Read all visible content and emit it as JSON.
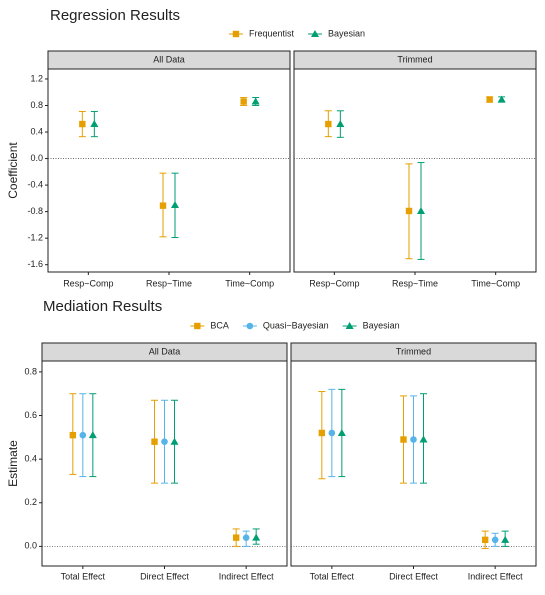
{
  "chart_data": [
    {
      "type": "errorbar",
      "title": "Regression Results",
      "ylabel": "Coefficient",
      "categories": [
        "Resp~Comp",
        "Resp~Time",
        "Time~Comp"
      ],
      "series": [
        {
          "name": "Frequentist",
          "color": "#E69F00",
          "marker": "square"
        },
        {
          "name": "Bayesian",
          "color": "#009E73",
          "marker": "triangle"
        }
      ],
      "facets": [
        {
          "title": "All Data",
          "series": [
            {
              "values": [
                0.52,
                -0.71,
                0.86
              ],
              "lower": [
                0.33,
                -1.18,
                0.8
              ],
              "upper": [
                0.71,
                -0.22,
                0.92
              ]
            },
            {
              "values": [
                0.52,
                -0.7,
                0.86
              ],
              "lower": [
                0.33,
                -1.19,
                0.8
              ],
              "upper": [
                0.71,
                -0.22,
                0.92
              ]
            }
          ]
        },
        {
          "title": "Trimmed",
          "series": [
            {
              "values": [
                0.52,
                -0.79,
                0.89
              ],
              "lower": [
                0.33,
                -1.51,
                0.85
              ],
              "upper": [
                0.72,
                -0.08,
                0.93
              ]
            },
            {
              "values": [
                0.52,
                -0.79,
                0.89
              ],
              "lower": [
                0.32,
                -1.52,
                0.85
              ],
              "upper": [
                0.72,
                -0.06,
                0.93
              ]
            }
          ]
        }
      ],
      "ylim": [
        -1.71,
        1.35
      ],
      "yticks": [
        1.2,
        0.8,
        0.4,
        {
          "value": 0,
          "label": "0.0"
        },
        -0.4,
        -0.8,
        -1.2,
        -1.6
      ],
      "hline": 0
    },
    {
      "type": "errorbar",
      "title": "Mediation Results",
      "ylabel": "Estimate",
      "categories": [
        "Total Effect",
        "Direct Effect",
        "Indirect Effect"
      ],
      "series": [
        {
          "name": "BCA",
          "color": "#E69F00",
          "marker": "square"
        },
        {
          "name": "Quasi−Bayesian",
          "color": "#56B4E9",
          "marker": "circle"
        },
        {
          "name": "Bayesian",
          "color": "#009E73",
          "marker": "triangle"
        }
      ],
      "facets": [
        {
          "title": "All Data",
          "series": [
            {
              "values": [
                0.51,
                0.48,
                0.04
              ],
              "lower": [
                0.33,
                0.29,
                0.0
              ],
              "upper": [
                0.7,
                0.67,
                0.08
              ]
            },
            {
              "values": [
                0.51,
                0.48,
                0.04
              ],
              "lower": [
                0.32,
                0.29,
                0.0
              ],
              "upper": [
                0.7,
                0.67,
                0.07
              ]
            },
            {
              "values": [
                0.51,
                0.48,
                0.04
              ],
              "lower": [
                0.32,
                0.29,
                0.01
              ],
              "upper": [
                0.7,
                0.67,
                0.08
              ]
            }
          ]
        },
        {
          "title": "Trimmed",
          "series": [
            {
              "values": [
                0.52,
                0.49,
                0.03
              ],
              "lower": [
                0.31,
                0.29,
                -0.01
              ],
              "upper": [
                0.71,
                0.69,
                0.07
              ]
            },
            {
              "values": [
                0.52,
                0.49,
                0.03
              ],
              "lower": [
                0.32,
                0.29,
                0.0
              ],
              "upper": [
                0.72,
                0.69,
                0.06
              ]
            },
            {
              "values": [
                0.52,
                0.49,
                0.03
              ],
              "lower": [
                0.32,
                0.29,
                0.0
              ],
              "upper": [
                0.72,
                0.7,
                0.07
              ]
            }
          ]
        }
      ],
      "ylim": [
        -0.09,
        0.85
      ],
      "yticks": [
        {
          "value": 0,
          "label": "0.0"
        },
        0.2,
        0.4,
        0.6,
        0.8
      ],
      "hline": 0
    }
  ]
}
